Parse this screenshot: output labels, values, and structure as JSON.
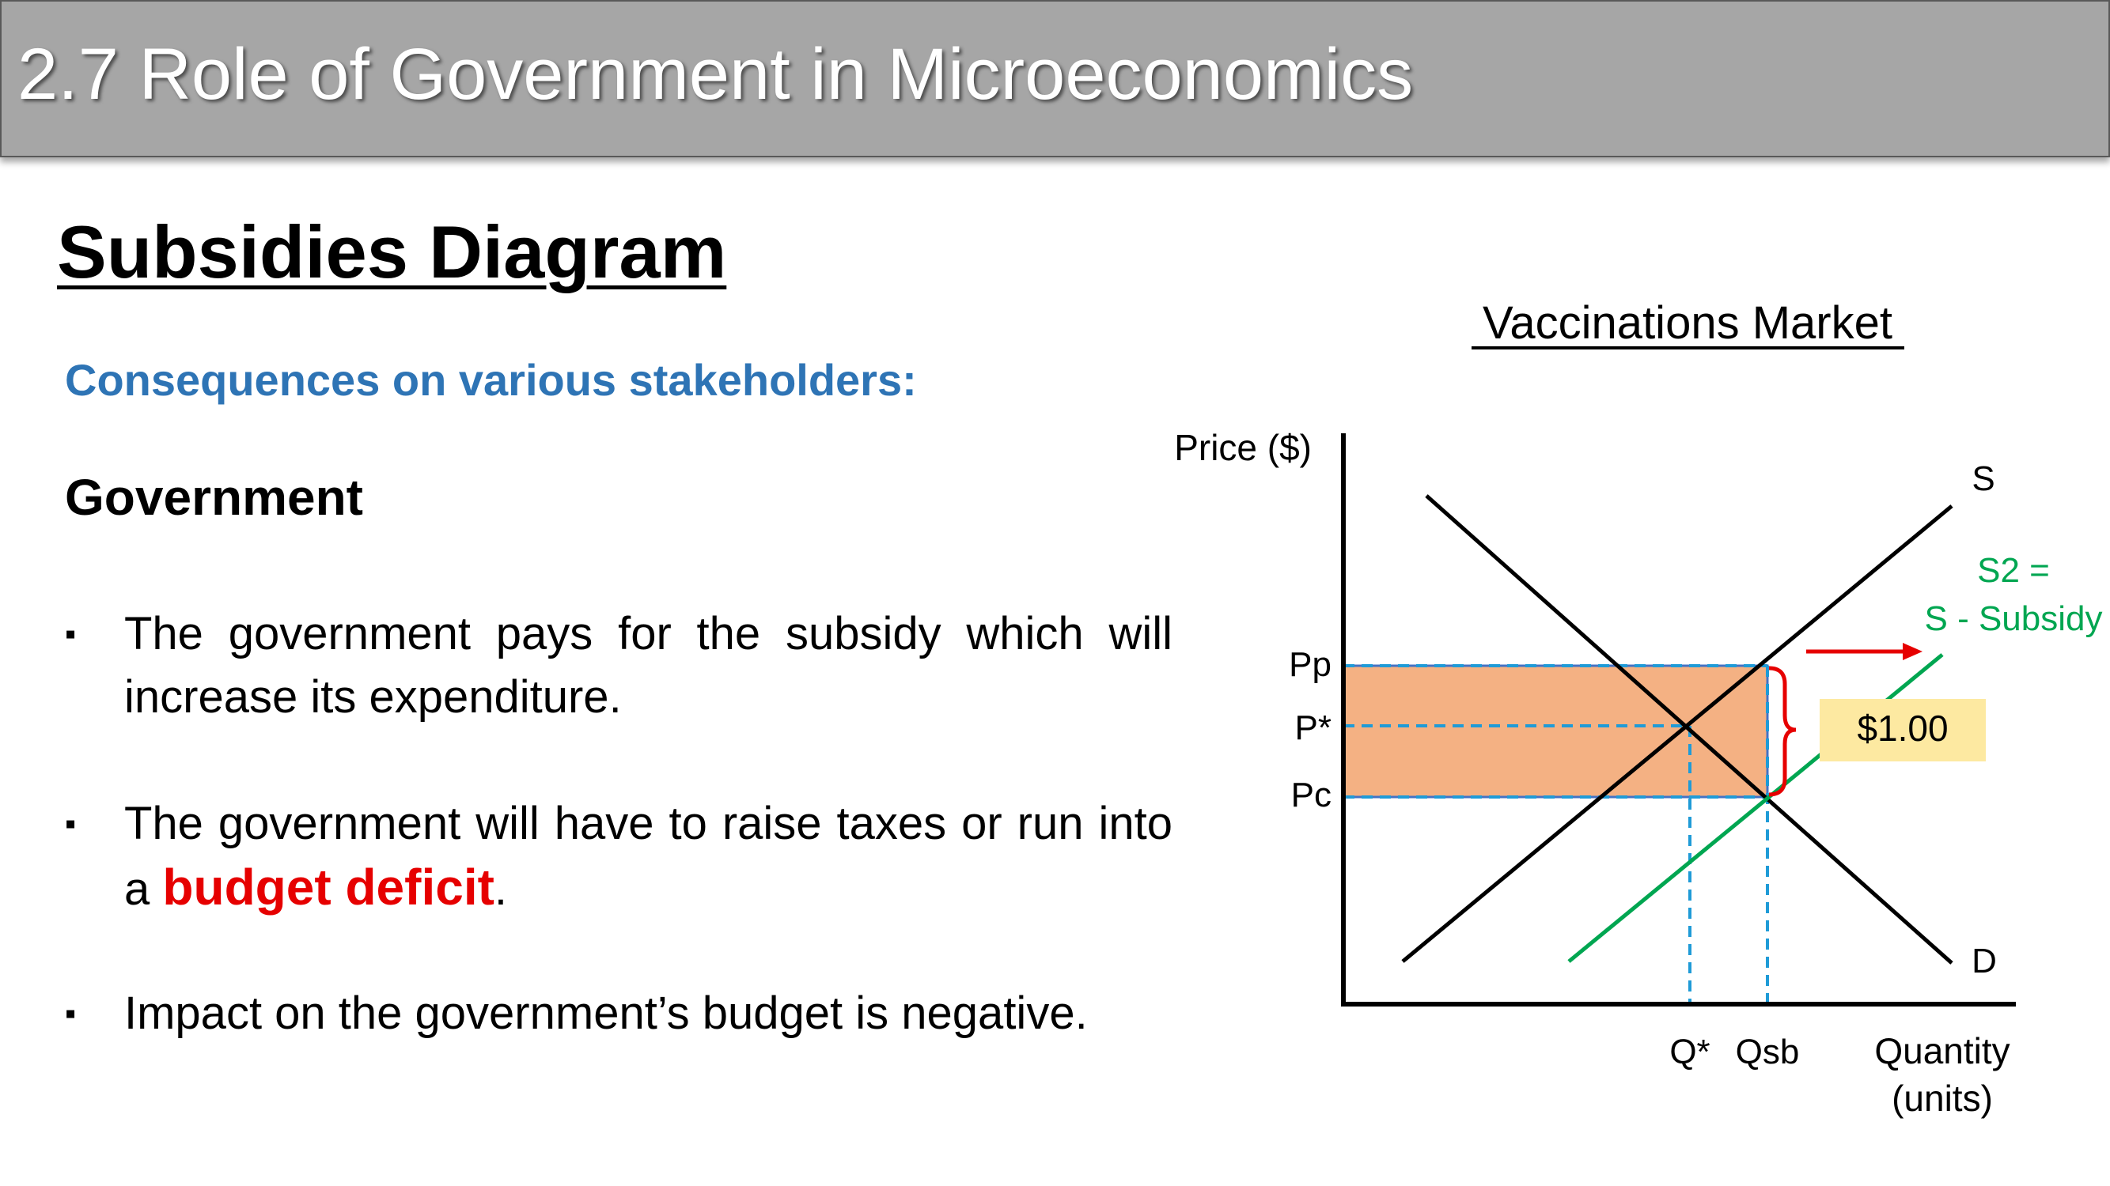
{
  "header": {
    "title": "2.7 Role of Government in Microeconomics"
  },
  "section": {
    "title": "Subsidies Diagram"
  },
  "subheading": "Consequences on various stakeholders:",
  "stakeholder": "Government",
  "bullets": [
    {
      "text": "The government pays for the subsidy which will increase its expenditure."
    },
    {
      "before": "The government will have to raise taxes or run into a ",
      "emphasis": "budget deficit",
      "after": "."
    },
    {
      "text": "Impact on the government’s budget is negative."
    }
  ],
  "diagram": {
    "title": "Vaccinations Market",
    "y_axis_label": "Price ($)",
    "x_axis_label_line1": "Quantity",
    "x_axis_label_line2": "(units)",
    "supply_label": "S",
    "demand_label": "D",
    "s2_label_line1": "S2 =",
    "s2_label_line2": "S - Subsidy",
    "price_labels": {
      "pp": "Pp",
      "pstar": "P*",
      "pc": "Pc"
    },
    "quantity_labels": {
      "qstar": "Q*",
      "qsb": "Qsb"
    },
    "subsidy_amount": "$1.00",
    "colors": {
      "supply": "#000000",
      "demand": "#000000",
      "s2": "#00a651",
      "subsidy_area": "#f4b183",
      "guides": "#1f9bd7",
      "brace_arrow": "#e60000",
      "amount_box": "#fde9a1",
      "emphasis": "#e60000",
      "subheading": "#2e74b5"
    }
  }
}
